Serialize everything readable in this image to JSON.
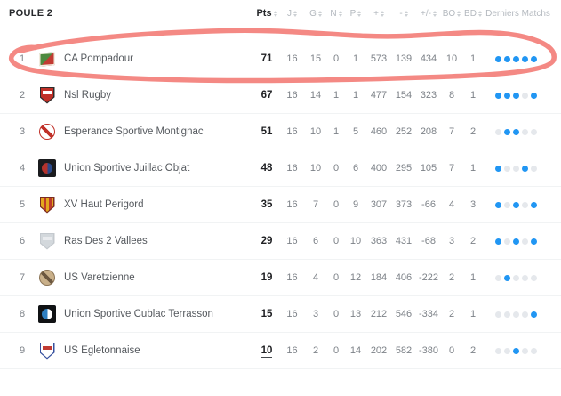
{
  "table": {
    "group_label": "POULE 2",
    "columns": [
      "Pts",
      "J",
      "G",
      "N",
      "P",
      "+",
      "-",
      "+/-",
      "BO",
      "BD",
      "Derniers Matchs"
    ],
    "rows": [
      {
        "rank": "1",
        "team": "CA Pompadour",
        "stats": [
          "71",
          "16",
          "15",
          "0",
          "1",
          "573",
          "139",
          "434",
          "10",
          "1"
        ],
        "last_matches": [
          "blue",
          "blue",
          "blue",
          "blue",
          "blue"
        ],
        "logo": {
          "shape": "flag",
          "colors": [
            "#4d8a3f",
            "#c23b33",
            "#f2ecdf"
          ]
        }
      },
      {
        "rank": "2",
        "team": "Nsl Rugby",
        "stats": [
          "67",
          "16",
          "14",
          "1",
          "1",
          "477",
          "154",
          "323",
          "8",
          "1"
        ],
        "last_matches": [
          "blue",
          "blue",
          "blue",
          "gray",
          "blue"
        ],
        "logo": {
          "shape": "shield",
          "colors": [
            "#c03028",
            "#2b2b2b",
            "#ffffff"
          ]
        }
      },
      {
        "rank": "3",
        "team": "Esperance Sportive Montignac",
        "stats": [
          "51",
          "16",
          "10",
          "1",
          "5",
          "460",
          "252",
          "208",
          "7",
          "2"
        ],
        "last_matches": [
          "gray",
          "blue",
          "blue",
          "gray",
          "gray"
        ],
        "logo": {
          "shape": "circle",
          "colors": [
            "#ffffff",
            "#c03028",
            "#c03028"
          ]
        }
      },
      {
        "rank": "4",
        "team": "Union Sportive Juillac Objat",
        "stats": [
          "48",
          "16",
          "10",
          "0",
          "6",
          "400",
          "295",
          "105",
          "7",
          "1"
        ],
        "last_matches": [
          "blue",
          "gray",
          "gray",
          "blue",
          "gray"
        ],
        "logo": {
          "shape": "square",
          "colors": [
            "#1a1b1e",
            "#b5332d",
            "#2b4a8b"
          ]
        }
      },
      {
        "rank": "5",
        "team": "XV Haut Perigord",
        "stats": [
          "35",
          "16",
          "7",
          "0",
          "9",
          "307",
          "373",
          "-66",
          "4",
          "3"
        ],
        "last_matches": [
          "blue",
          "gray",
          "blue",
          "gray",
          "blue"
        ],
        "logo": {
          "shape": "shield-stripes",
          "colors": [
            "#e3a71e",
            "#bf3a2b",
            "#7a2b20"
          ]
        }
      },
      {
        "rank": "6",
        "team": "Ras Des 2 Vallees",
        "stats": [
          "29",
          "16",
          "6",
          "0",
          "10",
          "363",
          "431",
          "-68",
          "3",
          "2"
        ],
        "last_matches": [
          "blue",
          "gray",
          "blue",
          "gray",
          "blue"
        ],
        "logo": {
          "shape": "shield",
          "colors": [
            "#d3d8dc",
            "#c4c9ce",
            "#e9ebee"
          ]
        }
      },
      {
        "rank": "7",
        "team": "US Varetzienne",
        "stats": [
          "19",
          "16",
          "4",
          "0",
          "12",
          "184",
          "406",
          "-222",
          "2",
          "1"
        ],
        "last_matches": [
          "gray",
          "blue",
          "gray",
          "gray",
          "gray"
        ],
        "logo": {
          "shape": "circle",
          "colors": [
            "#c9b08a",
            "#8a7355",
            "#6b5740"
          ]
        }
      },
      {
        "rank": "8",
        "team": "Union Sportive Cublac Terrasson",
        "stats": [
          "15",
          "16",
          "3",
          "0",
          "13",
          "212",
          "546",
          "-334",
          "2",
          "1"
        ],
        "last_matches": [
          "gray",
          "gray",
          "gray",
          "gray",
          "blue"
        ],
        "logo": {
          "shape": "square",
          "colors": [
            "#101214",
            "#2f7fc1",
            "#ffffff"
          ]
        }
      },
      {
        "rank": "9",
        "team": "US Egletonnaise",
        "stats": [
          "10",
          "16",
          "2",
          "0",
          "14",
          "202",
          "582",
          "-380",
          "0",
          "2"
        ],
        "last_matches": [
          "gray",
          "gray",
          "blue",
          "gray",
          "gray"
        ],
        "pts_underline": true,
        "logo": {
          "shape": "shield",
          "colors": [
            "#ffffff",
            "#35509e",
            "#c23b33"
          ]
        }
      }
    ]
  },
  "annotation": {
    "shape": "hand-drawn-ellipse",
    "around": "row 1 CA Pompadour",
    "color": "#f3837d"
  },
  "colors": {
    "dot_blue": "#2196f3",
    "dot_gray": "#e5e8ec",
    "header_text": "#b3b8be",
    "pts_text": "#202124",
    "stat_text": "#7d8288",
    "team_text": "#55595e",
    "separator": "#f1f3f4"
  }
}
